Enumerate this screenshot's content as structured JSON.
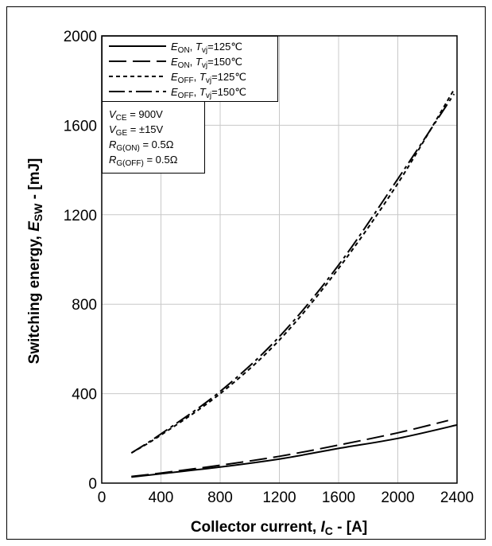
{
  "chart_data": {
    "type": "line",
    "ylabel_prefix": "Switching energy, ",
    "ylabel_symbol": "E",
    "ylabel_sub": "SW",
    "ylabel_suffix": " - [mJ]",
    "xlabel_prefix": "Collector current, ",
    "xlabel_symbol": "I",
    "xlabel_sub": "C",
    "xlabel_suffix": " - [A]",
    "xlim": [
      0,
      2400
    ],
    "ylim": [
      0,
      2000
    ],
    "xticks": [
      "0",
      "400",
      "800",
      "1200",
      "1600",
      "2000",
      "2400"
    ],
    "yticks": [
      "0",
      "400",
      "800",
      "1200",
      "1600",
      "2000"
    ],
    "grid": true,
    "legend_position": "top-left",
    "series": [
      {
        "name": "E_ON, T_vj=125℃",
        "legend": {
          "sym": "E",
          "sub": "ON",
          "mid": ", ",
          "sym2": "T",
          "sub2": "vj",
          "tail": "=125℃"
        },
        "style": "solid",
        "x": [
          200,
          400,
          800,
          1200,
          1600,
          2000,
          2400
        ],
        "y": [
          27,
          42,
          72,
          108,
          155,
          200,
          260
        ]
      },
      {
        "name": "E_ON, T_vj=150℃",
        "legend": {
          "sym": "E",
          "sub": "ON",
          "mid": ", ",
          "sym2": "T",
          "sub2": "vj",
          "tail": "=150℃"
        },
        "style": "long-dash",
        "x": [
          200,
          400,
          800,
          1200,
          1600,
          2000,
          2340
        ],
        "y": [
          30,
          45,
          80,
          120,
          170,
          225,
          280
        ]
      },
      {
        "name": "E_OFF, T_vj=125℃",
        "legend": {
          "sym": "E",
          "sub": "OFF",
          "mid": ", ",
          "sym2": "T",
          "sub2": "vj",
          "tail": "=125℃"
        },
        "style": "short-dash",
        "x": [
          200,
          400,
          800,
          1200,
          1600,
          2000,
          2380
        ],
        "y": [
          135,
          215,
          400,
          640,
          960,
          1340,
          1760
        ]
      },
      {
        "name": "E_OFF, T_vj=150℃",
        "legend": {
          "sym": "E",
          "sub": "OFF",
          "mid": ", ",
          "sym2": "T",
          "sub2": "vj",
          "tail": "=150℃"
        },
        "style": "dash-dot",
        "x": [
          200,
          400,
          800,
          1200,
          1600,
          2000,
          2380
        ],
        "y": [
          135,
          220,
          410,
          655,
          975,
          1360,
          1740
        ]
      }
    ],
    "conditions": [
      {
        "sym": "V",
        "sub": "CE",
        "tail": " = 900V"
      },
      {
        "sym": "V",
        "sub": "GE",
        "tail": " = ±15V"
      },
      {
        "sym": "R",
        "sub": "G(ON)",
        "tail": " = 0.5Ω"
      },
      {
        "sym": "R",
        "sub": "G(OFF)",
        "tail": " = 0.5Ω"
      }
    ]
  }
}
